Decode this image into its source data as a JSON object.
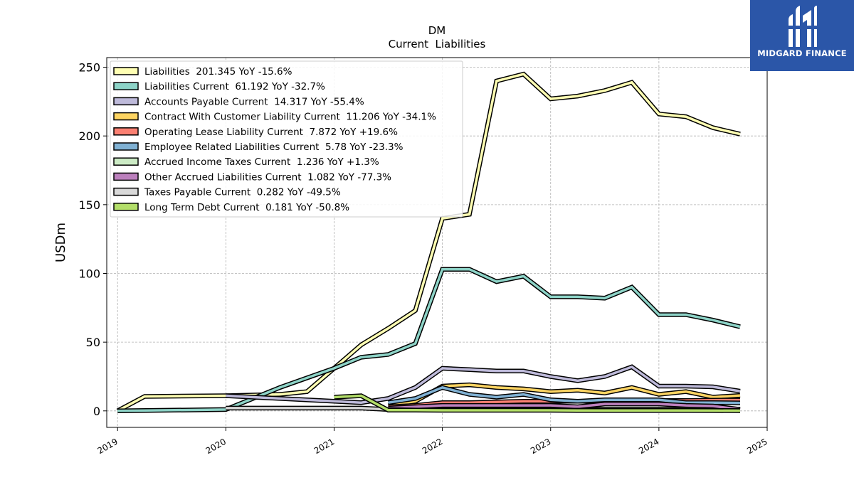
{
  "logo": {
    "text": "MIDGARD FINANCE"
  },
  "chart_data": {
    "type": "line",
    "title": "DM",
    "subtitle": "Current  Liabilities",
    "ylabel": "USDm",
    "xlabel": "",
    "xlim": [
      2018.9,
      2025.0
    ],
    "ylim": [
      -12,
      257
    ],
    "xticks": [
      2019,
      2020,
      2021,
      2022,
      2023,
      2024,
      2025
    ],
    "xtick_labels": [
      "2019",
      "2020",
      "2021",
      "2022",
      "2023",
      "2024",
      "2025"
    ],
    "yticks": [
      0,
      50,
      100,
      150,
      200,
      250
    ],
    "ytick_labels": [
      "0",
      "50",
      "100",
      "150",
      "200",
      "250"
    ],
    "grid": true,
    "legend_position": "top-left",
    "series": [
      {
        "name": "Liabilities  201.345 YoY -15.6%",
        "color": "#ffffb3",
        "x": [
          2019.0,
          2019.25,
          2020.0,
          2020.5,
          2020.75,
          2021.0,
          2021.25,
          2021.5,
          2021.75,
          2022.0,
          2022.25,
          2022.5,
          2022.75,
          2023.0,
          2023.25,
          2023.5,
          2023.75,
          2024.0,
          2024.25,
          2024.5,
          2024.75
        ],
        "y": [
          0,
          10.5,
          11,
          12,
          14,
          31,
          48,
          60,
          73,
          140,
          143,
          240,
          245,
          227,
          229,
          233,
          239,
          216,
          214,
          206,
          201.345
        ]
      },
      {
        "name": "Liabilities Current  61.192 YoY -32.7%",
        "color": "#8dd3c7",
        "x": [
          2019.0,
          2020.0,
          2020.25,
          2020.5,
          2020.75,
          2021.0,
          2021.25,
          2021.5,
          2021.75,
          2022.0,
          2022.25,
          2022.5,
          2022.75,
          2023.0,
          2023.25,
          2023.5,
          2023.75,
          2024.0,
          2024.25,
          2024.5,
          2024.75
        ],
        "y": [
          0,
          1,
          9,
          17,
          24,
          31,
          39,
          41,
          49,
          103,
          103,
          94,
          98,
          83,
          83,
          82,
          90,
          70,
          70,
          66,
          61.192
        ]
      },
      {
        "name": "Accounts Payable Current  14.317 YoY -55.4%",
        "color": "#bebada",
        "x": [
          2020.0,
          2021.0,
          2021.25,
          2021.5,
          2021.75,
          2022.0,
          2022.25,
          2022.5,
          2022.75,
          2023.0,
          2023.25,
          2023.5,
          2023.75,
          2024.0,
          2024.25,
          2024.5,
          2024.75
        ],
        "y": [
          11,
          7,
          6,
          9,
          17,
          31,
          30,
          29,
          29,
          25,
          22,
          25,
          32,
          18,
          18,
          17.5,
          14.317
        ]
      },
      {
        "name": "Contract With Customer Liability Current  11.206 YoY -34.1%",
        "color": "#fdd462",
        "x": [
          2021.5,
          2021.75,
          2022.0,
          2022.25,
          2022.5,
          2022.75,
          2023.0,
          2023.25,
          2023.5,
          2023.75,
          2024.0,
          2024.25,
          2024.5,
          2024.75
        ],
        "y": [
          4,
          7,
          18,
          19,
          17,
          16,
          14,
          15,
          13,
          17,
          12,
          14,
          10,
          11.206
        ]
      },
      {
        "name": "Operating Lease Liability Current  7.872 YoY +19.6%",
        "color": "#fb8072",
        "x": [
          2021.5,
          2021.75,
          2022.0,
          2022.25,
          2022.5,
          2022.75,
          2023.0,
          2023.25,
          2023.5,
          2023.75,
          2024.0,
          2024.25,
          2024.5,
          2024.75
        ],
        "y": [
          3,
          4,
          6,
          6,
          6.5,
          7,
          7,
          7,
          7,
          7,
          7.5,
          7.5,
          7.8,
          7.872
        ]
      },
      {
        "name": "Employee Related Liabilities Current  5.78 YoY -23.3%",
        "color": "#80b1d3",
        "x": [
          2021.5,
          2021.75,
          2022.0,
          2022.25,
          2022.5,
          2022.75,
          2023.0,
          2023.25,
          2023.5,
          2023.75,
          2024.0,
          2024.25,
          2024.5,
          2024.75
        ],
        "y": [
          6,
          9,
          17,
          12,
          10,
          12,
          8,
          7,
          8,
          8,
          8,
          6,
          6,
          5.78
        ]
      },
      {
        "name": "Accrued Income Taxes Current  1.236 YoY +1.3%",
        "color": "#ccebc5",
        "x": [
          2021.5,
          2021.75,
          2022.0,
          2022.25,
          2022.5,
          2022.75,
          2023.0,
          2023.25,
          2023.5,
          2023.75,
          2024.0,
          2024.25,
          2024.5,
          2024.75
        ],
        "y": [
          1,
          1,
          1.2,
          1.2,
          1.2,
          1.2,
          1.2,
          1.2,
          1.2,
          1.2,
          1.2,
          1.2,
          1.2,
          1.236
        ]
      },
      {
        "name": "Other Accrued Liabilities Current  1.082 YoY -77.3%",
        "color": "#bc80bd",
        "x": [
          2021.5,
          2021.75,
          2022.0,
          2022.25,
          2022.5,
          2022.75,
          2023.0,
          2023.25,
          2023.5,
          2023.75,
          2024.0,
          2024.25,
          2024.5,
          2024.75
        ],
        "y": [
          2,
          3,
          4,
          4,
          4,
          4,
          4,
          3,
          5,
          5,
          5,
          4,
          3.5,
          1.082
        ]
      },
      {
        "name": "Taxes Payable Current  0.282 YoY -49.5%",
        "color": "#d9d9d9",
        "x": [
          2020.0,
          2021.0,
          2021.25,
          2021.5,
          2021.75,
          2022.0,
          2022.25,
          2022.5,
          2022.75,
          2023.0,
          2023.25,
          2023.5,
          2023.75,
          2024.0,
          2024.25,
          2024.5,
          2024.75
        ],
        "y": [
          2,
          2,
          2,
          1,
          0.6,
          0.5,
          0.5,
          0.5,
          0.5,
          0.5,
          0.5,
          0.4,
          0.4,
          0.4,
          0.4,
          0.3,
          0.282
        ]
      },
      {
        "name": "Long Term Debt Current  0.181 YoY -50.8%",
        "color": "#b3de69",
        "x": [
          2021.0,
          2021.25,
          2021.5,
          2021.75,
          2022.0,
          2022.25,
          2022.5,
          2022.75,
          2023.0,
          2023.25,
          2023.5,
          2023.75,
          2024.0,
          2024.25,
          2024.5,
          2024.75
        ],
        "y": [
          10,
          11,
          0.5,
          0.5,
          0.4,
          0.4,
          0.4,
          0.4,
          0.4,
          0.3,
          0.3,
          0.3,
          0.3,
          0.3,
          0.2,
          0.181
        ]
      }
    ]
  }
}
